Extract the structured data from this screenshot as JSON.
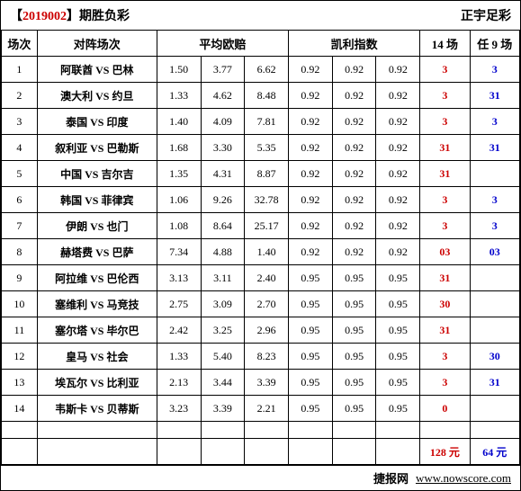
{
  "header": {
    "issue_prefix": "【",
    "issue": "2019002",
    "issue_suffix": "】",
    "title_suffix": "期胜负彩",
    "right": "正宇足彩"
  },
  "columns": {
    "num": "场次",
    "match": "对阵场次",
    "odds": "平均欧赔",
    "kelly": "凯利指数",
    "pick14": "14 场",
    "pick9": "任 9 场"
  },
  "rows": [
    {
      "n": "1",
      "m": "阿联酋 VS 巴林",
      "o": [
        "1.50",
        "3.77",
        "6.62"
      ],
      "k": [
        "0.92",
        "0.92",
        "0.92"
      ],
      "p14": "3",
      "p9": "3"
    },
    {
      "n": "2",
      "m": "澳大利 VS 约旦",
      "o": [
        "1.33",
        "4.62",
        "8.48"
      ],
      "k": [
        "0.92",
        "0.92",
        "0.92"
      ],
      "p14": "3",
      "p9": "31"
    },
    {
      "n": "3",
      "m": "泰国 VS 印度",
      "o": [
        "1.40",
        "4.09",
        "7.81"
      ],
      "k": [
        "0.92",
        "0.92",
        "0.92"
      ],
      "p14": "3",
      "p9": "3"
    },
    {
      "n": "4",
      "m": "叙利亚 VS 巴勒斯",
      "o": [
        "1.68",
        "3.30",
        "5.35"
      ],
      "k": [
        "0.92",
        "0.92",
        "0.92"
      ],
      "p14": "31",
      "p9": "31"
    },
    {
      "n": "5",
      "m": "中国 VS 吉尔吉",
      "o": [
        "1.35",
        "4.31",
        "8.87"
      ],
      "k": [
        "0.92",
        "0.92",
        "0.92"
      ],
      "p14": "31",
      "p9": ""
    },
    {
      "n": "6",
      "m": "韩国 VS 菲律宾",
      "o": [
        "1.06",
        "9.26",
        "32.78"
      ],
      "k": [
        "0.92",
        "0.92",
        "0.92"
      ],
      "p14": "3",
      "p9": "3"
    },
    {
      "n": "7",
      "m": "伊朗 VS 也门",
      "o": [
        "1.08",
        "8.64",
        "25.17"
      ],
      "k": [
        "0.92",
        "0.92",
        "0.92"
      ],
      "p14": "3",
      "p9": "3"
    },
    {
      "n": "8",
      "m": "赫塔费 VS 巴萨",
      "o": [
        "7.34",
        "4.88",
        "1.40"
      ],
      "k": [
        "0.92",
        "0.92",
        "0.92"
      ],
      "p14": "03",
      "p9": "03"
    },
    {
      "n": "9",
      "m": "阿拉维 VS 巴伦西",
      "o": [
        "3.13",
        "3.11",
        "2.40"
      ],
      "k": [
        "0.95",
        "0.95",
        "0.95"
      ],
      "p14": "31",
      "p9": ""
    },
    {
      "n": "10",
      "m": "塞维利 VS 马竞技",
      "o": [
        "2.75",
        "3.09",
        "2.70"
      ],
      "k": [
        "0.95",
        "0.95",
        "0.95"
      ],
      "p14": "30",
      "p9": ""
    },
    {
      "n": "11",
      "m": "塞尔塔 VS 毕尔巴",
      "o": [
        "2.42",
        "3.25",
        "2.96"
      ],
      "k": [
        "0.95",
        "0.95",
        "0.95"
      ],
      "p14": "31",
      "p9": ""
    },
    {
      "n": "12",
      "m": "皇马 VS 社会",
      "o": [
        "1.33",
        "5.40",
        "8.23"
      ],
      "k": [
        "0.95",
        "0.95",
        "0.95"
      ],
      "p14": "3",
      "p9": "30"
    },
    {
      "n": "13",
      "m": "埃瓦尔 VS 比利亚",
      "o": [
        "2.13",
        "3.44",
        "3.39"
      ],
      "k": [
        "0.95",
        "0.95",
        "0.95"
      ],
      "p14": "3",
      "p9": "31"
    },
    {
      "n": "14",
      "m": "韦斯卡 VS 贝蒂斯",
      "o": [
        "3.23",
        "3.39",
        "2.21"
      ],
      "k": [
        "0.95",
        "0.95",
        "0.95"
      ],
      "p14": "0",
      "p9": ""
    }
  ],
  "totals": {
    "t14": "128 元",
    "t9": "64 元"
  },
  "footer": {
    "site_label": "捷报网",
    "site_url": "www.nowscore.com"
  }
}
